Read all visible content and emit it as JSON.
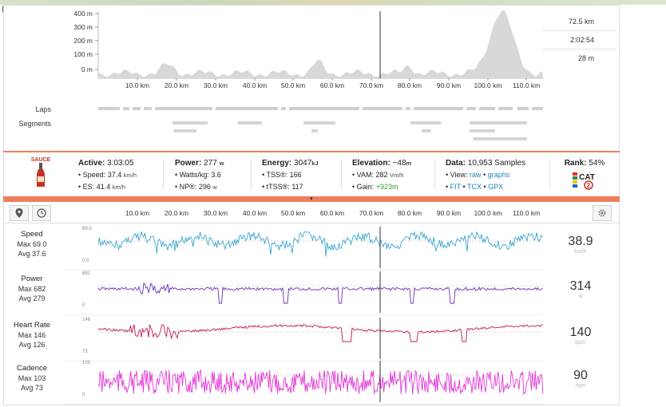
{
  "elevation": {
    "y_ticks": [
      "400 m",
      "300 m",
      "200 m",
      "100 m",
      "0 m"
    ],
    "x_ticks": [
      "10.0 km",
      "20.0 km",
      "30.0 km",
      "40.0 km",
      "50.0 km",
      "60.0 km",
      "70.0 km",
      "80.0 km",
      "90.0 km",
      "100.0 km",
      "110.0 km"
    ],
    "stats": [
      "72.5 km",
      "2:02:54",
      "28 m"
    ],
    "fill_color": "#d8d8d8"
  },
  "tracks": {
    "laps_label": "Laps",
    "segments_label": "Segments"
  },
  "stats": {
    "logo": "SAUCE",
    "active": {
      "label": "Active:",
      "value": "3:03:05",
      "speed_label": "• Speed:",
      "speed": "37.4",
      "speed_unit": "km/h",
      "es_label": "• ES:",
      "es": "41.4",
      "es_unit": "km/h"
    },
    "power": {
      "label": "Power:",
      "value": "277",
      "unit": "w",
      "wkg_label": "• Watts/kg:",
      "wkg": "3.6",
      "np_label": "• NP®:",
      "np": "296",
      "np_unit": "w"
    },
    "energy": {
      "label": "Energy:",
      "value": "3047",
      "unit": "kJ",
      "tss_label": "• TSS®:",
      "tss": "166",
      "ttss_label": "• tTSS®:",
      "ttss": "117"
    },
    "elevation": {
      "label": "Elevation:",
      "value": "~48",
      "unit": "m",
      "vam_label": "• VAM:",
      "vam": "282",
      "vam_unit": "Vm/h",
      "gain_label": "• Gain:",
      "gain": "+923m"
    },
    "data": {
      "label": "Data:",
      "value": "10,953 Samples",
      "view_label": "• View:",
      "raw": "raw",
      "graphs": "graphs",
      "fit": "FIT",
      "tcx": "TCX",
      "gpx": "GPX"
    },
    "rank": {
      "label": "Rank:",
      "value": "54%",
      "badge": "CAT",
      "badge_num": "2"
    },
    "accent": "#ee7f5e"
  },
  "streams": {
    "x_ticks": [
      "10.0 km",
      "20.0 km",
      "30.0 km",
      "40.0 km",
      "50.0 km",
      "60.0 km",
      "70.0 km",
      "80.0 km",
      "90.0 km",
      "100.0 km",
      "110.0 km"
    ],
    "rows": [
      {
        "name": "Speed",
        "max_label": "Max 69.0",
        "avg_label": "Avg 37.6",
        "ymax": "69.0",
        "ymin": "0.0",
        "value": "38.9",
        "unit": "km/h",
        "color": "#3aa6d0"
      },
      {
        "name": "Power",
        "max_label": "Max 682",
        "avg_label": "Avg 279",
        "ymax": "682",
        "ymin": "0",
        "value": "314",
        "unit": "w",
        "color": "#6a2fb8"
      },
      {
        "name": "Heart Rate",
        "max_label": "Max 146",
        "avg_label": "Avg 126",
        "ymax": "146",
        "ymin": "73",
        "value": "140",
        "unit": "bpm",
        "color": "#c2184f"
      },
      {
        "name": "Cadence",
        "max_label": "Max 103",
        "avg_label": "Avg 73",
        "ymax": "103",
        "ymin": "0",
        "value": "90",
        "unit": "rpm",
        "color": "#e236d6"
      }
    ]
  }
}
